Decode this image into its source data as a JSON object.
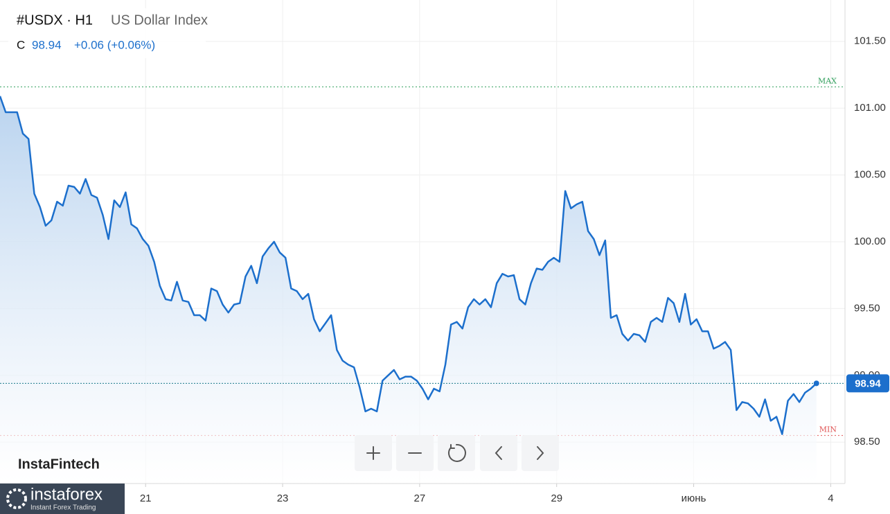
{
  "header": {
    "symbol": "#USDX · H1",
    "name": "US Dollar Index",
    "close_prefix": "C",
    "close": "98.94",
    "change": "+0.06 (+0.06%)"
  },
  "brand": "InstaFintech",
  "logo": {
    "name": "instaforex",
    "tagline": "Instant Forex Trading"
  },
  "chart_data": {
    "type": "line",
    "series": [
      {
        "color": "#1c6fcc",
        "values": [
          101.09,
          100.97,
          100.97,
          100.97,
          100.81,
          100.77,
          100.36,
          100.26,
          100.12,
          100.16,
          100.3,
          100.27,
          100.42,
          100.41,
          100.36,
          100.47,
          100.35,
          100.33,
          100.2,
          100.02,
          100.31,
          100.26,
          100.37,
          100.13,
          100.1,
          100.02,
          99.97,
          99.85,
          99.67,
          99.57,
          99.56,
          99.7,
          99.56,
          99.55,
          99.45,
          99.45,
          99.41,
          99.65,
          99.63,
          99.53,
          99.47,
          99.53,
          99.54,
          99.74,
          99.82,
          99.69,
          99.89,
          99.95,
          100.0,
          99.92,
          99.88,
          99.65,
          99.63,
          99.57,
          99.61,
          99.42,
          99.33,
          99.39,
          99.45,
          99.19,
          99.11,
          99.08,
          99.06,
          98.91,
          98.73,
          98.75,
          98.73,
          98.96,
          99.0,
          99.04,
          98.97,
          98.99,
          98.99,
          98.96,
          98.9,
          98.82,
          98.9,
          98.88,
          99.08,
          99.38,
          99.4,
          99.35,
          99.51,
          99.57,
          99.53,
          99.57,
          99.51,
          99.69,
          99.76,
          99.74,
          99.75,
          99.57,
          99.53,
          99.69,
          99.8,
          99.79,
          99.85,
          99.88,
          99.85,
          100.38,
          100.25,
          100.28,
          100.3,
          100.08,
          100.02,
          99.9,
          100.01,
          99.43,
          99.45,
          99.31,
          99.26,
          99.31,
          99.3,
          99.25,
          99.4,
          99.43,
          99.4,
          99.58,
          99.54,
          99.4,
          99.61,
          99.38,
          99.42,
          99.33,
          99.33,
          99.2,
          99.22,
          99.25,
          99.19,
          98.74,
          98.8,
          98.79,
          98.75,
          98.69,
          98.82,
          98.66,
          98.69,
          98.56,
          98.81,
          98.86,
          98.8,
          98.87,
          98.9,
          98.94
        ]
      }
    ],
    "xlim": [
      0,
      148
    ],
    "xticks": [
      {
        "value": 25.5,
        "label": "21"
      },
      {
        "value": 49.5,
        "label": "23"
      },
      {
        "value": 73.5,
        "label": "27"
      },
      {
        "value": 97.5,
        "label": "29"
      },
      {
        "value": 121.5,
        "label": "июнь"
      },
      {
        "value": 145.5,
        "label": "4"
      }
    ],
    "ylim": [
      98.19,
      101.81
    ],
    "yticks": [
      {
        "value": 98.5,
        "label": "98.50"
      },
      {
        "value": 99,
        "label": "99.00"
      },
      {
        "value": 99.5,
        "label": "99.50"
      },
      {
        "value": 100,
        "label": "100.00"
      },
      {
        "value": 100.5,
        "label": "100.50"
      },
      {
        "value": 101,
        "label": "101.00"
      },
      {
        "value": 101.5,
        "label": "101.50"
      }
    ],
    "max_line": {
      "value": 101.16,
      "label": "MAX",
      "color": "#2e9e5a"
    },
    "min_line": {
      "value": 98.55,
      "label": "MIN",
      "color": "#e05555"
    },
    "grid": true
  }
}
